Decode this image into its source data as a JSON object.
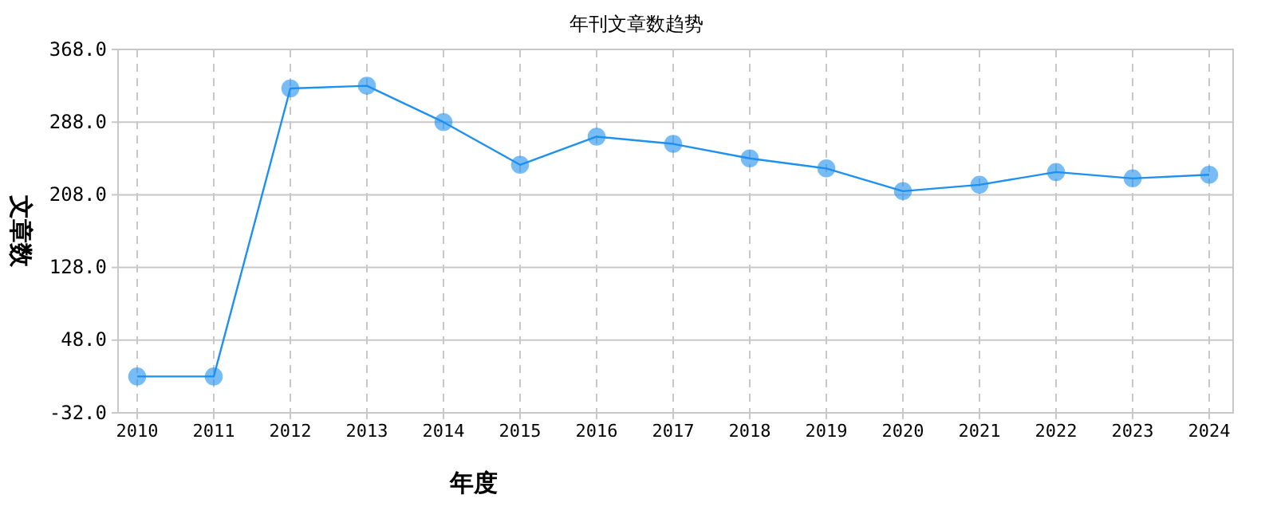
{
  "chart_data": {
    "type": "line",
    "title": "年刊文章数趋势",
    "xlabel": "年度",
    "ylabel": "文章数",
    "categories": [
      "2010",
      "2011",
      "2012",
      "2013",
      "2014",
      "2015",
      "2016",
      "2017",
      "2018",
      "2019",
      "2020",
      "2021",
      "2022",
      "2023",
      "2024"
    ],
    "series": [
      {
        "color": "#1e90f0",
        "values": [
          8,
          8,
          325,
          328,
          288,
          241,
          272,
          264,
          248,
          237,
          212,
          219,
          233,
          226,
          230
        ]
      }
    ],
    "ylim": [
      -32,
      368
    ],
    "yticks": [
      {
        "value": -32,
        "label": "-32.0"
      },
      {
        "value": 48,
        "label": "48.0"
      },
      {
        "value": 128,
        "label": "128.0"
      },
      {
        "value": 208,
        "label": "208.0"
      },
      {
        "value": 288,
        "label": "288.0"
      },
      {
        "value": 368,
        "label": "368.0"
      }
    ],
    "grid": true,
    "marker": "circle",
    "line_style": "solid"
  }
}
